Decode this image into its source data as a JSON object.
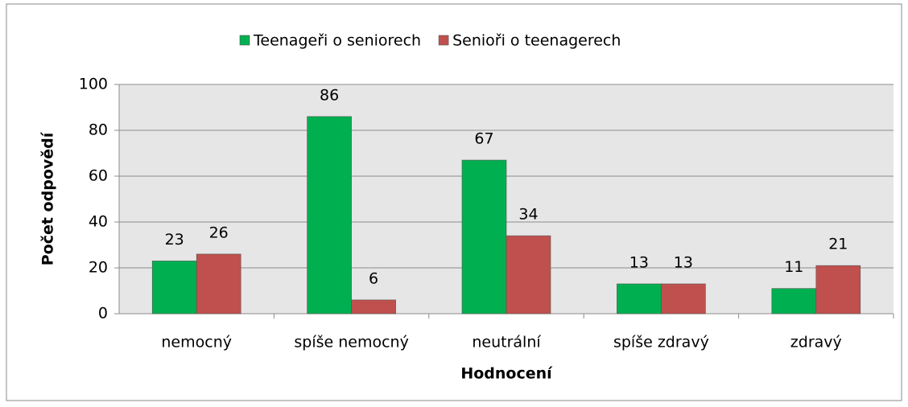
{
  "chart_data": {
    "type": "bar",
    "categories": [
      "nemocný",
      "spíše nemocný",
      "neutrální",
      "spíše zdravý",
      "zdravý"
    ],
    "series": [
      {
        "name": "Teenageři o seniorech",
        "color": "#00b050",
        "values": [
          23,
          86,
          67,
          13,
          11
        ]
      },
      {
        "name": "Senioři o teenagerech",
        "color": "#c0504d",
        "values": [
          26,
          6,
          34,
          13,
          21
        ]
      }
    ],
    "xlabel": "Hodnocení",
    "ylabel": "Počet odpovědí",
    "ylim": [
      0,
      100
    ],
    "yticks": [
      0,
      20,
      40,
      60,
      80,
      100
    ],
    "grid": true,
    "legend": "top"
  }
}
